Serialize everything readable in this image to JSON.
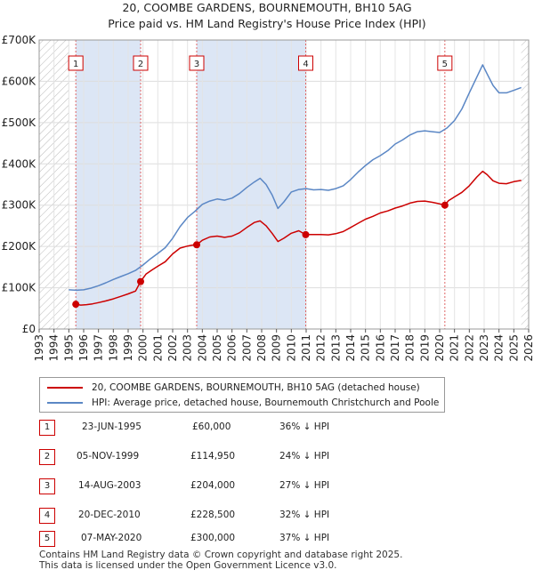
{
  "chart_data": {
    "type": "line",
    "title": "20, COOMBE GARDENS, BOURNEMOUTH, BH10 5AG",
    "subtitle": "Price paid vs. HM Land Registry's House Price Index (HPI)",
    "xlabel": "",
    "ylabel": "",
    "xlim": [
      1993,
      2026
    ],
    "ylim": [
      0,
      700000
    ],
    "x_ticks": [
      "1993",
      "1994",
      "1995",
      "1996",
      "1997",
      "1998",
      "1999",
      "2000",
      "2001",
      "2002",
      "2003",
      "2004",
      "2005",
      "2006",
      "2007",
      "2008",
      "2009",
      "2010",
      "2011",
      "2012",
      "2013",
      "2014",
      "2015",
      "2016",
      "2017",
      "2018",
      "2019",
      "2020",
      "2021",
      "2022",
      "2023",
      "2024",
      "2025",
      "2026"
    ],
    "y_ticks": [
      {
        "value": 0,
        "label": "£0"
      },
      {
        "value": 100000,
        "label": "£100K"
      },
      {
        "value": 200000,
        "label": "£200K"
      },
      {
        "value": 300000,
        "label": "£300K"
      },
      {
        "value": 400000,
        "label": "£400K"
      },
      {
        "value": 500000,
        "label": "£500K"
      },
      {
        "value": 600000,
        "label": "£600K"
      },
      {
        "value": 700000,
        "label": "£700K"
      }
    ],
    "grid": true,
    "colors": {
      "property": "#cc0000",
      "hpi": "#5b87c5",
      "band": "#dce6f5",
      "hatch": "#bbbbbb",
      "vline": "#e06666"
    },
    "series": [
      {
        "name": "20, COOMBE GARDENS, BOURNEMOUTH, BH10 5AG (detached house)",
        "x": [
          1995.47,
          1995.8,
          1996.2,
          1996.6,
          1997.0,
          1997.5,
          1998.0,
          1998.5,
          1999.0,
          1999.5,
          1999.84,
          2000.2,
          2000.6,
          2001.0,
          2001.5,
          2002.0,
          2002.5,
          2003.0,
          2003.3,
          2003.62,
          2004.0,
          2004.5,
          2005.0,
          2005.5,
          2006.0,
          2006.5,
          2007.0,
          2007.5,
          2007.9,
          2008.3,
          2008.7,
          2009.1,
          2009.5,
          2010.0,
          2010.5,
          2010.97,
          2011.3,
          2012.0,
          2012.5,
          2013.0,
          2013.5,
          2014.0,
          2014.5,
          2015.0,
          2015.5,
          2016.0,
          2016.5,
          2017.0,
          2017.5,
          2018.0,
          2018.5,
          2019.0,
          2019.5,
          2019.9,
          2020.35,
          2020.6,
          2021.0,
          2021.5,
          2022.0,
          2022.5,
          2022.9,
          2023.2,
          2023.6,
          2024.0,
          2024.5,
          2025.0,
          2025.5
        ],
        "values": [
          60000,
          58000,
          59000,
          61000,
          64000,
          68000,
          73000,
          79000,
          85000,
          92000,
          114950,
          133000,
          143000,
          152000,
          163000,
          182000,
          196000,
          201000,
          203000,
          204000,
          215000,
          223000,
          225000,
          222000,
          225000,
          233000,
          246000,
          258000,
          262000,
          250000,
          232000,
          212000,
          220000,
          232000,
          238000,
          228500,
          229000,
          229000,
          228000,
          231000,
          236000,
          246000,
          256000,
          266000,
          273000,
          281000,
          286000,
          293000,
          298000,
          305000,
          309000,
          310000,
          307000,
          304000,
          300000,
          311000,
          320000,
          331000,
          347000,
          368000,
          382000,
          374000,
          359000,
          353000,
          352000,
          357000,
          360000
        ]
      },
      {
        "name": "HPI: Average price, detached house, Bournemouth Christchurch and Poole",
        "x": [
          1995.0,
          1995.5,
          1996.0,
          1996.5,
          1997.0,
          1997.5,
          1998.0,
          1998.5,
          1999.0,
          1999.5,
          2000.0,
          2000.5,
          2001.0,
          2001.5,
          2002.0,
          2002.5,
          2003.0,
          2003.5,
          2004.0,
          2004.5,
          2005.0,
          2005.5,
          2006.0,
          2006.5,
          2007.0,
          2007.5,
          2007.9,
          2008.3,
          2008.7,
          2009.1,
          2009.5,
          2010.0,
          2010.5,
          2011.0,
          2011.5,
          2012.0,
          2012.5,
          2013.0,
          2013.5,
          2014.0,
          2014.5,
          2015.0,
          2015.5,
          2016.0,
          2016.5,
          2017.0,
          2017.5,
          2018.0,
          2018.5,
          2019.0,
          2019.5,
          2020.0,
          2020.5,
          2021.0,
          2021.5,
          2022.0,
          2022.5,
          2022.9,
          2023.2,
          2023.6,
          2024.0,
          2024.5,
          2025.0,
          2025.5
        ],
        "values": [
          95000,
          94000,
          95000,
          99000,
          105000,
          112000,
          120000,
          127000,
          134000,
          142000,
          155000,
          170000,
          183000,
          197000,
          220000,
          248000,
          270000,
          285000,
          302000,
          310000,
          315000,
          312000,
          317000,
          328000,
          343000,
          356000,
          365000,
          350000,
          325000,
          292000,
          308000,
          332000,
          338000,
          340000,
          337000,
          338000,
          336000,
          340000,
          347000,
          362000,
          380000,
          396000,
          410000,
          420000,
          432000,
          448000,
          458000,
          470000,
          478000,
          480000,
          478000,
          476000,
          487000,
          505000,
          533000,
          572000,
          610000,
          640000,
          618000,
          590000,
          572000,
          572000,
          578000,
          585000
        ]
      }
    ],
    "sales": [
      {
        "num": "1",
        "x": 1995.47,
        "value": 60000
      },
      {
        "num": "2",
        "x": 1999.84,
        "value": 114950
      },
      {
        "num": "3",
        "x": 2003.62,
        "value": 204000
      },
      {
        "num": "4",
        "x": 2010.97,
        "value": 228500
      },
      {
        "num": "5",
        "x": 2020.35,
        "value": 300000
      }
    ],
    "hatch_before": 1995.0,
    "hatch_after": 2025.5
  },
  "legend": {
    "property_label": "20, COOMBE GARDENS, BOURNEMOUTH, BH10 5AG (detached house)",
    "hpi_label": "HPI: Average price, detached house, Bournemouth Christchurch and Poole"
  },
  "sales_table": [
    {
      "num": "1",
      "date": "23-JUN-1995",
      "price": "£60,000",
      "hpi": "36% ↓ HPI"
    },
    {
      "num": "2",
      "date": "05-NOV-1999",
      "price": "£114,950",
      "hpi": "24% ↓ HPI"
    },
    {
      "num": "3",
      "date": "14-AUG-2003",
      "price": "£204,000",
      "hpi": "27% ↓ HPI"
    },
    {
      "num": "4",
      "date": "20-DEC-2010",
      "price": "£228,500",
      "hpi": "32% ↓ HPI"
    },
    {
      "num": "5",
      "date": "07-MAY-2020",
      "price": "£300,000",
      "hpi": "37% ↓ HPI"
    }
  ],
  "footer": {
    "line1": "Contains HM Land Registry data © Crown copyright and database right 2025.",
    "line2": "This data is licensed under the Open Government Licence v3.0."
  }
}
